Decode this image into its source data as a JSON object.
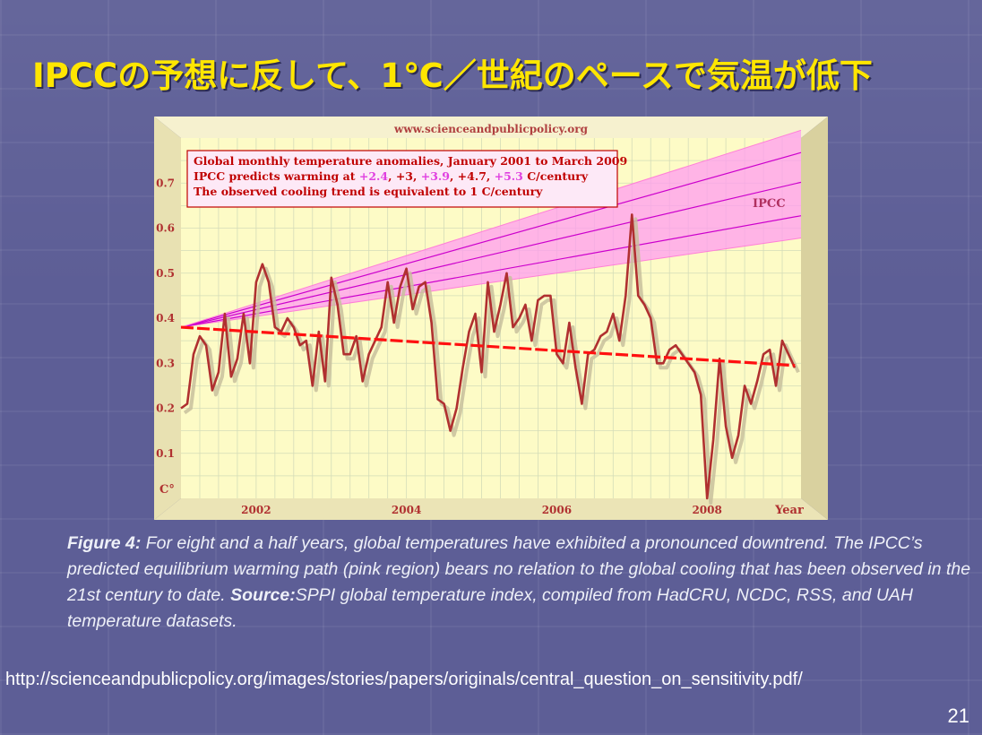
{
  "slide": {
    "title": "IPCCの予想に反して、1℃／世紀のペースで気温が低下",
    "caption": {
      "figure_label": "Figure 4:",
      "text": " For eight and a half years, global temperatures have exhibited a pronounced downtrend. The IPCC’s predicted equilibrium warming path (pink region) bears no  relation to the global cooling that has been observed in the 21st century to date. ",
      "source_label": "Source:",
      "source_text": "SPPI global temperature index, compiled from HadCRU, NCDC, RSS, and UAH  temperature datasets."
    },
    "url": "http://scienceandpublicpolicy.org/images/stories/papers/originals/central_question_on_sensitivity.pdf/",
    "page_number": "21"
  },
  "chart_data": {
    "type": "line",
    "website": "www.scienceandpublicpolicy.org",
    "legend_lines": [
      "Global monthly temperature anomalies, January 2001 to March 2009",
      "The observed cooling trend is equivalent to 1 C/century"
    ],
    "ipcc_line": {
      "prefix": "IPCC predicts warming at ",
      "parts": [
        {
          "text": "+2.4",
          "color": "#e040e0"
        },
        {
          "text": ", ",
          "color": "#c00000"
        },
        {
          "text": "+3",
          "color": "#c00000"
        },
        {
          "text": ", ",
          "color": "#c00000"
        },
        {
          "text": "+3.9",
          "color": "#e040e0"
        },
        {
          "text": ", ",
          "color": "#c00000"
        },
        {
          "text": "+4.7",
          "color": "#c00000"
        },
        {
          "text": ", ",
          "color": "#c00000"
        },
        {
          "text": "+5.3",
          "color": "#e040e0"
        },
        {
          "text": " C/century",
          "color": "#c00000"
        }
      ]
    },
    "ipcc_label": "IPCC",
    "y_unit_label": "C°",
    "x_axis_label": "Year",
    "xlim": [
      2001.0,
      2009.25
    ],
    "ylim": [
      0,
      0.8
    ],
    "y_ticks": [
      "0.1",
      "0.2",
      "0.3",
      "0.4",
      "0.5",
      "0.6",
      "0.7"
    ],
    "x_ticks": [
      "2002",
      "2004",
      "2006",
      "2008"
    ],
    "grid": true,
    "ipcc_start": {
      "x": 2001.0,
      "y": 0.38
    },
    "ipcc_rates_per_century": [
      2.4,
      3,
      3.9,
      4.7,
      5.3
    ],
    "trend": {
      "x": [
        2001.0,
        2009.17
      ],
      "y": [
        0.38,
        0.295
      ],
      "rate_per_century": -1
    },
    "colors": {
      "plot_bg": "#fdfbc6",
      "frame": "#efe9bd",
      "anomaly_line": "#b03030",
      "anomaly_shadow": "#c8c09c",
      "trend_line": "#ff1010",
      "ipcc_band": "#ff9cf0",
      "ipcc_mid": "#cc00cc",
      "text_red": "#c00000"
    },
    "series": [
      {
        "name": "Global monthly temperature anomalies",
        "x_start": 2001.0,
        "x_step_months": 1,
        "values": [
          0.2,
          0.21,
          0.32,
          0.36,
          0.34,
          0.24,
          0.28,
          0.41,
          0.27,
          0.31,
          0.41,
          0.3,
          0.48,
          0.52,
          0.48,
          0.38,
          0.37,
          0.4,
          0.38,
          0.34,
          0.35,
          0.25,
          0.37,
          0.26,
          0.49,
          0.43,
          0.32,
          0.32,
          0.36,
          0.26,
          0.32,
          0.35,
          0.38,
          0.48,
          0.39,
          0.47,
          0.51,
          0.42,
          0.47,
          0.48,
          0.39,
          0.22,
          0.21,
          0.15,
          0.2,
          0.29,
          0.37,
          0.41,
          0.28,
          0.48,
          0.37,
          0.43,
          0.5,
          0.38,
          0.4,
          0.43,
          0.35,
          0.44,
          0.45,
          0.45,
          0.32,
          0.3,
          0.39,
          0.29,
          0.21,
          0.32,
          0.33,
          0.36,
          0.37,
          0.41,
          0.35,
          0.45,
          0.63,
          0.45,
          0.43,
          0.4,
          0.3,
          0.3,
          0.33,
          0.34,
          0.32,
          0.3,
          0.28,
          0.23,
          0.0,
          0.13,
          0.31,
          0.16,
          0.09,
          0.14,
          0.25,
          0.21,
          0.26,
          0.32,
          0.33,
          0.25,
          0.35,
          0.32,
          0.29
        ]
      }
    ]
  }
}
